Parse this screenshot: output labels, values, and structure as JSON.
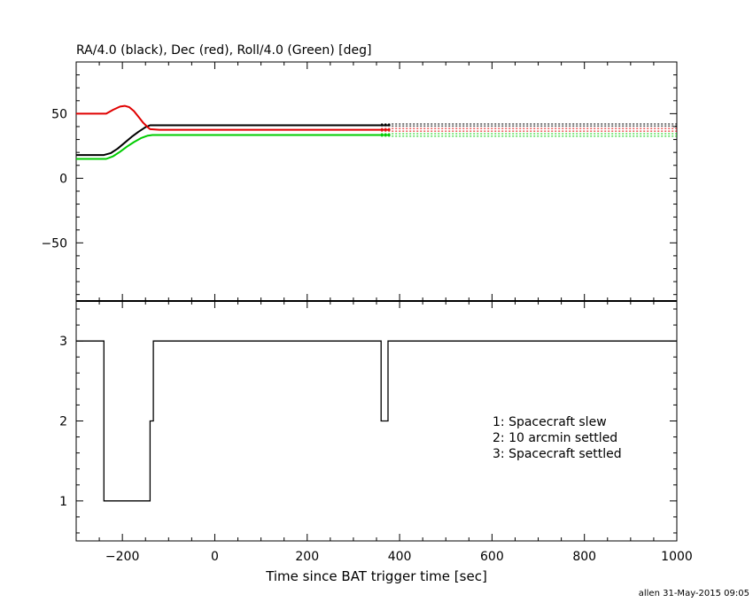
{
  "chart_data": [
    {
      "type": "line",
      "title": "RA/4.0 (black), Dec (red), Roll/4.0 (Green) [deg]",
      "xlim": [
        -300,
        1000
      ],
      "ylim": [
        -95,
        90
      ],
      "yticks": [
        50,
        0,
        -50
      ],
      "grid": false,
      "series": [
        {
          "color": "#000000",
          "x": [
            -300,
            -240,
            -225,
            -210,
            -195,
            -180,
            -165,
            -150,
            -140,
            -120,
            0,
            200,
            380
          ],
          "y": [
            18,
            18,
            19.5,
            23,
            27.5,
            32,
            36,
            39.5,
            41,
            41,
            41,
            41,
            41
          ]
        },
        {
          "color": "#e00000",
          "x": [
            -300,
            -235,
            -220,
            -205,
            -195,
            -185,
            -175,
            -165,
            -155,
            -145,
            -140,
            -120,
            0,
            200,
            380
          ],
          "y": [
            50,
            50,
            53,
            55.5,
            56,
            55,
            52,
            47.5,
            43,
            39.5,
            38,
            37.5,
            37.5,
            37.5,
            37.5
          ]
        },
        {
          "color": "#00cc00",
          "x": [
            -300,
            -235,
            -220,
            -205,
            -190,
            -175,
            -160,
            -145,
            -135,
            -120,
            0,
            200,
            380
          ],
          "y": [
            15,
            15,
            17,
            20.5,
            24.5,
            28,
            31,
            33,
            33.5,
            33.5,
            33.5,
            33.5,
            33.5
          ]
        }
      ],
      "dotted_extension": {
        "x_start": 360,
        "x_end": 1000,
        "levels": [
          {
            "color": "#000000",
            "values": [
              42,
              40.5
            ]
          },
          {
            "color": "#e00000",
            "values": [
              38.5,
              36.5
            ]
          },
          {
            "color": "#00cc00",
            "values": [
              34.5,
              32.5
            ]
          }
        ]
      }
    },
    {
      "type": "line",
      "xlim": [
        -300,
        1000
      ],
      "ylim": [
        0.5,
        3.5
      ],
      "yticks": [
        3,
        2,
        1
      ],
      "xticks": [
        -200,
        0,
        200,
        400,
        600,
        800,
        1000
      ],
      "xlabel": "Time since BAT trigger time [sec]",
      "grid": false,
      "series": [
        {
          "color": "#000000",
          "x": [
            -300,
            -240,
            -240,
            -140,
            -140,
            -133,
            -133,
            360,
            360,
            375,
            375,
            1000
          ],
          "y": [
            3,
            3,
            1,
            1,
            2,
            2,
            3,
            3,
            2,
            2,
            3,
            3
          ]
        }
      ],
      "legend": {
        "placement": "right",
        "entries": [
          "1: Spacecraft slew",
          "2: 10 arcmin settled",
          "3: Spacecraft settled"
        ]
      }
    }
  ],
  "footer": {
    "stamp": "allen 31-May-2015 09:05"
  }
}
